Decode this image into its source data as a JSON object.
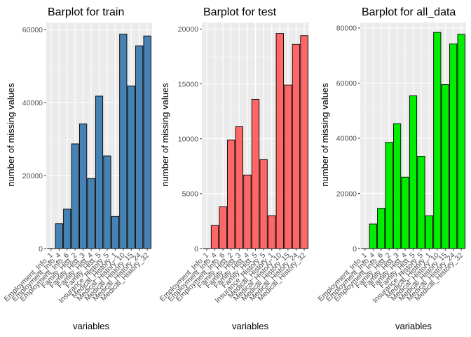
{
  "chart_data": [
    {
      "type": "bar",
      "title": "Barplot for train",
      "xlabel": "variables",
      "ylabel": "number of missing values",
      "categories": [
        "Employment_Info_1",
        "Employment_Info_4",
        "Employment_Info_6",
        "Family_Hist_2",
        "Family_Hist_3",
        "Family_Hist_4",
        "Family_Hist_5",
        "Insurance_History_5",
        "Medical_History_1",
        "Medical_History_10",
        "Medical_History_15",
        "Medical_History_24",
        "Medical_History_32"
      ],
      "values": [
        0,
        6800,
        10800,
        28700,
        34200,
        19200,
        41800,
        25400,
        8800,
        58800,
        44600,
        55600,
        58300
      ],
      "ylim": [
        0,
        62000
      ],
      "yticks": [
        0,
        20000,
        40000,
        60000
      ],
      "fill": "#4682b4",
      "grid": true
    },
    {
      "type": "bar",
      "title": "Barplot for test",
      "xlabel": "variables",
      "ylabel": "number of missing values",
      "categories": [
        "Employment_Info_1",
        "Employment_Info_4",
        "Employment_Info_6",
        "Family_Hist_2",
        "Family_Hist_3",
        "Family_Hist_4",
        "Family_Hist_5",
        "Insurance_History_5",
        "Medical_History_1",
        "Medical_History_10",
        "Medical_History_15",
        "Medical_History_24",
        "Medical_History_32"
      ],
      "values": [
        0,
        2100,
        3800,
        9900,
        11100,
        6700,
        13600,
        8100,
        3000,
        19600,
        14900,
        18600,
        19400
      ],
      "ylim": [
        0,
        20600
      ],
      "yticks": [
        0,
        5000,
        10000,
        15000,
        20000
      ],
      "fill": "#ff6666",
      "grid": true
    },
    {
      "type": "bar",
      "title": "Barplot for all_data",
      "xlabel": "variables",
      "ylabel": "number of missing values",
      "categories": [
        "Employment_Info_1",
        "Employment_Info_4",
        "Employment_Info_6",
        "Family_Hist_2",
        "Family_Hist_3",
        "Family_Hist_4",
        "Family_Hist_5",
        "Insurance_History_5",
        "Medical_History_1",
        "Medical_History_10",
        "Medical_History_15",
        "Medical_History_24",
        "Medical_History_32"
      ],
      "values": [
        0,
        8900,
        14600,
        38500,
        45300,
        25900,
        55400,
        33500,
        11900,
        78400,
        59500,
        74200,
        77700
      ],
      "ylim": [
        0,
        82000
      ],
      "yticks": [
        0,
        20000,
        40000,
        60000,
        80000
      ],
      "fill": "#00ee00",
      "grid": true
    }
  ]
}
